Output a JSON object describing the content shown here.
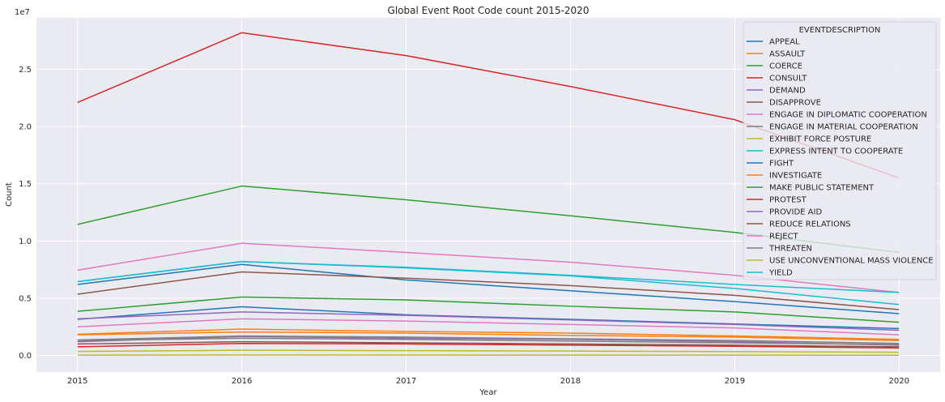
{
  "chart_data": {
    "type": "line",
    "title": "Global Event Root Code count 2015-2020",
    "xlabel": "Year",
    "ylabel": "Count",
    "y_offset_label": "1e7",
    "x": [
      2015,
      2016,
      2017,
      2018,
      2019,
      2020
    ],
    "xlim": [
      2014.75,
      2020.25
    ],
    "ylim": [
      -1450000,
      29500000
    ],
    "y_ticks": [
      0,
      5000000,
      10000000,
      15000000,
      20000000,
      25000000
    ],
    "y_tick_labels": [
      "0.0",
      "0.5",
      "1.0",
      "1.5",
      "2.0",
      "2.5"
    ],
    "grid": true,
    "legend": {
      "title": "EVENTDESCRIPTION",
      "placement": "upper right"
    },
    "series": [
      {
        "name": "APPEAL",
        "color": "#1f77b4",
        "values": [
          6200000,
          7950000,
          6600000,
          5650000,
          4700000,
          3650000
        ]
      },
      {
        "name": "ASSAULT",
        "color": "#ff7f0e",
        "values": [
          1850000,
          2300000,
          2100000,
          1950000,
          1700000,
          1400000
        ]
      },
      {
        "name": "COERCE",
        "color": "#2ca02c",
        "values": [
          3850000,
          5100000,
          4850000,
          4300000,
          3800000,
          2900000
        ]
      },
      {
        "name": "CONSULT",
        "color": "#d62728",
        "values": [
          22100000,
          28200000,
          26200000,
          23500000,
          20600000,
          15500000
        ]
      },
      {
        "name": "DEMAND",
        "color": "#9467bd",
        "values": [
          1200000,
          1650000,
          1500000,
          1400000,
          1200000,
          900000
        ]
      },
      {
        "name": "DISAPPROVE",
        "color": "#8c564b",
        "values": [
          5350000,
          7300000,
          6750000,
          6100000,
          5250000,
          4000000
        ]
      },
      {
        "name": "ENGAGE IN DIPLOMATIC COOPERATION",
        "color": "#e377c2",
        "values": [
          7450000,
          9800000,
          9000000,
          8150000,
          7000000,
          5500000
        ]
      },
      {
        "name": "ENGAGE IN MATERIAL COOPERATION",
        "color": "#7f7f7f",
        "values": [
          1350000,
          1700000,
          1600000,
          1450000,
          1300000,
          1050000
        ]
      },
      {
        "name": "EXHIBIT FORCE POSTURE",
        "color": "#bcbd22",
        "values": [
          350000,
          450000,
          420000,
          380000,
          330000,
          280000
        ]
      },
      {
        "name": "EXPRESS INTENT TO COOPERATE",
        "color": "#17becf",
        "values": [
          6450000,
          8200000,
          7650000,
          6950000,
          5850000,
          4450000
        ]
      },
      {
        "name": "FIGHT",
        "color": "#1f77b4",
        "values": [
          3150000,
          4250000,
          3550000,
          3150000,
          2750000,
          2350000
        ]
      },
      {
        "name": "INVESTIGATE",
        "color": "#ff7f0e",
        "values": [
          1800000,
          2050000,
          1950000,
          1750000,
          1600000,
          1300000
        ]
      },
      {
        "name": "MAKE PUBLIC STATEMENT",
        "color": "#2ca02c",
        "values": [
          11450000,
          14800000,
          13600000,
          12200000,
          10750000,
          9000000
        ]
      },
      {
        "name": "PROTEST",
        "color": "#d62728",
        "values": [
          750000,
          1050000,
          1000000,
          900000,
          800000,
          650000
        ]
      },
      {
        "name": "PROVIDE AID",
        "color": "#9467bd",
        "values": [
          3200000,
          3800000,
          3500000,
          3100000,
          2700000,
          2200000
        ]
      },
      {
        "name": "REDUCE RELATIONS",
        "color": "#8c564b",
        "values": [
          1000000,
          1200000,
          1100000,
          1000000,
          900000,
          750000
        ]
      },
      {
        "name": "REJECT",
        "color": "#e377c2",
        "values": [
          2500000,
          3200000,
          3000000,
          2700000,
          2400000,
          1800000
        ]
      },
      {
        "name": "THREATEN",
        "color": "#7f7f7f",
        "values": [
          1300000,
          1500000,
          1400000,
          1250000,
          1100000,
          950000
        ]
      },
      {
        "name": "USE UNCONVENTIONAL MASS VIOLENCE",
        "color": "#bcbd22",
        "values": [
          30000,
          40000,
          35000,
          30000,
          25000,
          20000
        ]
      },
      {
        "name": "YIELD",
        "color": "#17becf",
        "values": [
          6450000,
          8200000,
          7700000,
          7000000,
          6200000,
          5500000
        ]
      }
    ]
  }
}
